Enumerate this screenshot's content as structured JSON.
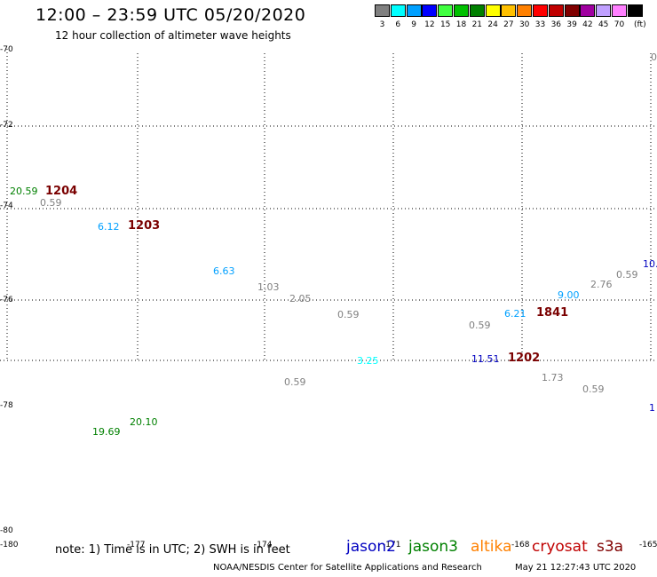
{
  "header": {
    "title": "12:00 – 23:59 UTC 05/20/2020",
    "subtitle": "12 hour collection of altimeter wave heights"
  },
  "legend": {
    "unit": "(ft)",
    "items": [
      {
        "label": "3",
        "color": "#808080"
      },
      {
        "label": "6",
        "color": "#00ffff"
      },
      {
        "label": "9",
        "color": "#00a0ff"
      },
      {
        "label": "12",
        "color": "#0000ff"
      },
      {
        "label": "15",
        "color": "#40ff40"
      },
      {
        "label": "18",
        "color": "#00c000"
      },
      {
        "label": "21",
        "color": "#008000"
      },
      {
        "label": "24",
        "color": "#ffff00"
      },
      {
        "label": "27",
        "color": "#ffc000"
      },
      {
        "label": "30",
        "color": "#ff8000"
      },
      {
        "label": "33",
        "color": "#ff0000"
      },
      {
        "label": "36",
        "color": "#c00000"
      },
      {
        "label": "39",
        "color": "#800000"
      },
      {
        "label": "42",
        "color": "#a000a0"
      },
      {
        "label": "45",
        "color": "#c0a0ff"
      },
      {
        "label": "70",
        "color": "#ff80ff"
      },
      {
        "label": "",
        "color": "#000000"
      }
    ]
  },
  "map": {
    "lat_ticks": [
      "-70",
      "-72",
      "-74",
      "-76",
      "-78",
      "-80"
    ],
    "lon_ticks": [
      "-180",
      "-177",
      "-174",
      "-171",
      "-168",
      "-165"
    ],
    "edge_labels": [
      "0",
      "10.",
      "1"
    ],
    "swh_values": [
      {
        "text": "20.59",
        "color": "#008000"
      },
      {
        "text": "0.59",
        "color": "#808080"
      },
      {
        "text": "6.12",
        "color": "#00a0ff"
      },
      {
        "text": "6.63",
        "color": "#00a0ff"
      },
      {
        "text": "1.03",
        "color": "#808080"
      },
      {
        "text": "2.05",
        "color": "#808080"
      },
      {
        "text": "0.59",
        "color": "#808080"
      },
      {
        "text": "3.25",
        "color": "#00ffff"
      },
      {
        "text": "0.59",
        "color": "#808080"
      },
      {
        "text": "19.69",
        "color": "#008000"
      },
      {
        "text": "20.10",
        "color": "#008000"
      },
      {
        "text": "0.59",
        "color": "#808080"
      },
      {
        "text": "11.51",
        "color": "#0000c0"
      },
      {
        "text": "6.21",
        "color": "#00a0ff"
      },
      {
        "text": "9.00",
        "color": "#00a0ff"
      },
      {
        "text": "2.76",
        "color": "#808080"
      },
      {
        "text": "0.59",
        "color": "#808080"
      },
      {
        "text": "1.73",
        "color": "#808080"
      },
      {
        "text": "0.59",
        "color": "#808080"
      }
    ],
    "pass_times": [
      "1204",
      "1203",
      "1841",
      "1202"
    ]
  },
  "footer": {
    "note": "note:  1) Time is in UTC;  2) SWH is in feet",
    "satellites": [
      {
        "name": "jason2",
        "color": "#0000c0"
      },
      {
        "name": "jason3",
        "color": "#008000"
      },
      {
        "name": "altika",
        "color": "#ff8000"
      },
      {
        "name": "cryosat",
        "color": "#c00000"
      },
      {
        "name": "s3a",
        "color": "#800000"
      }
    ],
    "credit": "NOAA/NESDIS Center for Satellite Applications and Research",
    "timestamp": "May 21 12:27:43 UTC 2020"
  }
}
